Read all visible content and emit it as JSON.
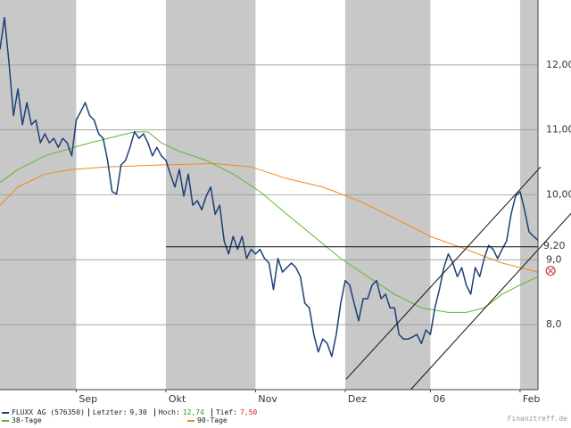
{
  "chart_data": {
    "type": "line",
    "xlim": [
      0,
      120
    ],
    "xticks": [
      {
        "value": 17,
        "label": "Sep"
      },
      {
        "value": 37,
        "label": "Okt"
      },
      {
        "value": 57,
        "label": "Nov"
      },
      {
        "value": 77,
        "label": "Dez"
      },
      {
        "value": 96,
        "label": "06"
      },
      {
        "value": 116,
        "label": "Feb"
      }
    ],
    "ylim": [
      7,
      13
    ],
    "yticks": [
      {
        "value": 12,
        "label": "12,00"
      },
      {
        "value": 11,
        "label": "11,00"
      },
      {
        "value": 10,
        "label": "10,00"
      },
      {
        "value": 9,
        "label": "9,0"
      },
      {
        "value": 8,
        "label": "8,0"
      }
    ],
    "grid": true,
    "shaded_bands": true,
    "series": [
      {
        "name": "FLUXX AG (576350)",
        "color": "#1c3f75",
        "x": [
          0,
          1,
          2,
          3,
          4,
          5,
          6,
          7,
          8,
          9,
          10,
          11,
          12,
          13,
          14,
          15,
          16,
          17,
          18,
          19,
          20,
          21,
          22,
          23,
          24,
          25,
          26,
          27,
          28,
          29,
          30,
          31,
          32,
          33,
          34,
          35,
          36,
          37,
          38,
          39,
          40,
          41,
          42,
          43,
          44,
          45,
          46,
          47,
          48,
          49,
          50,
          51,
          52,
          53,
          54,
          55,
          56,
          57,
          58,
          59,
          60,
          61,
          62,
          63,
          64,
          65,
          66,
          67,
          68,
          69,
          70,
          71,
          72,
          73,
          74,
          75,
          76,
          77,
          78,
          79,
          80,
          81,
          82,
          83,
          84,
          85,
          86,
          87,
          88,
          89,
          90,
          91,
          92,
          93,
          94,
          95,
          96,
          97,
          98,
          99,
          100,
          101,
          102,
          103,
          104,
          105,
          106,
          107,
          108,
          109,
          110,
          111,
          112,
          113,
          114,
          115,
          116,
          117,
          118,
          119,
          120
        ],
        "values": [
          12.24,
          12.73,
          12.04,
          11.22,
          11.63,
          11.08,
          11.42,
          11.08,
          11.15,
          10.8,
          10.94,
          10.8,
          10.87,
          10.73,
          10.87,
          10.8,
          10.6,
          11.15,
          11.28,
          11.42,
          11.22,
          11.15,
          10.94,
          10.87,
          10.53,
          10.05,
          10.01,
          10.46,
          10.53,
          10.73,
          10.97,
          10.87,
          10.94,
          10.8,
          10.6,
          10.73,
          10.6,
          10.53,
          10.32,
          10.12,
          10.39,
          9.98,
          10.32,
          9.84,
          9.91,
          9.77,
          9.98,
          10.12,
          9.7,
          9.84,
          9.29,
          9.09,
          9.36,
          9.16,
          9.36,
          9.02,
          9.16,
          9.09,
          9.16,
          9.02,
          8.95,
          8.54,
          9.02,
          8.81,
          8.88,
          8.95,
          8.88,
          8.74,
          8.33,
          8.26,
          7.85,
          7.58,
          7.78,
          7.71,
          7.51,
          7.85,
          8.33,
          8.68,
          8.61,
          8.33,
          8.06,
          8.4,
          8.4,
          8.61,
          8.68,
          8.4,
          8.47,
          8.26,
          8.26,
          7.85,
          7.78,
          7.78,
          7.81,
          7.85,
          7.71,
          7.92,
          7.85,
          8.26,
          8.54,
          8.88,
          9.09,
          8.95,
          8.74,
          8.88,
          8.61,
          8.47,
          8.88,
          8.74,
          9.02,
          9.22,
          9.16,
          9.02,
          9.16,
          9.29,
          9.7,
          9.98,
          10.05,
          9.77,
          9.43,
          9.36,
          9.3
        ]
      },
      {
        "name": "38-Tage",
        "color": "#5cb82e",
        "x": [
          0,
          4,
          10,
          20,
          30,
          33,
          36,
          40,
          46,
          52,
          58,
          64,
          70,
          76,
          82,
          88,
          94,
          100,
          104,
          108,
          112,
          116,
          120
        ],
        "values": [
          10.19,
          10.39,
          10.6,
          10.8,
          10.97,
          10.97,
          10.8,
          10.67,
          10.53,
          10.32,
          10.05,
          9.7,
          9.36,
          9.02,
          8.74,
          8.47,
          8.26,
          8.19,
          8.19,
          8.26,
          8.47,
          8.61,
          8.74
        ]
      },
      {
        "name": "90-Tage",
        "color": "#f08a1c",
        "x": [
          0,
          4,
          10,
          16,
          24,
          36,
          48,
          56,
          64,
          72,
          80,
          88,
          96,
          104,
          112,
          120
        ],
        "values": [
          9.84,
          10.12,
          10.32,
          10.39,
          10.43,
          10.46,
          10.48,
          10.43,
          10.25,
          10.12,
          9.91,
          9.64,
          9.36,
          9.16,
          8.95,
          8.81
        ]
      }
    ],
    "trend_lines": [
      {
        "x": [
          77.2,
          120.6
        ],
        "values": [
          7.16,
          10.43
        ]
      },
      {
        "x": [
          91.6,
          127.6
        ],
        "values": [
          7.0,
          9.73
        ]
      }
    ],
    "hline": {
      "value": 9.2,
      "label": "9,20",
      "x": [
        37,
        120
      ]
    },
    "signal": {
      "x": 122.8,
      "value": 8.83,
      "color": "#d04040"
    },
    "stats": [
      {
        "label": "Letzter:",
        "value": "9,30",
        "color": "#222222"
      },
      {
        "label": "Hoch:",
        "value": "12,74",
        "color": "#2a9a2a"
      },
      {
        "label": "Tief:",
        "value": "7,50",
        "color": "#dd2020"
      }
    ],
    "source": "Finanztreff.de"
  }
}
